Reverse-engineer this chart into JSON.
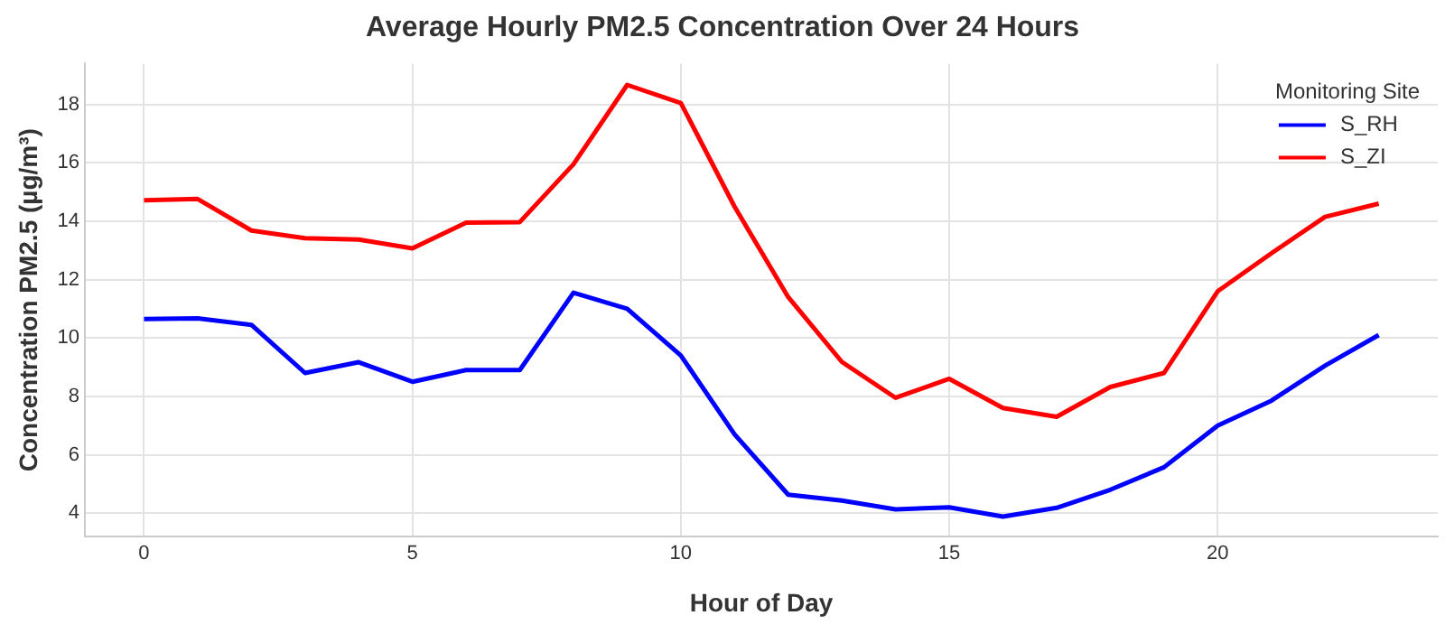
{
  "chart_data": {
    "type": "line",
    "title": "Average Hourly PM2.5 Concentration Over 24 Hours",
    "xlabel": "Hour of Day",
    "ylabel": "Concentration PM2.5 (µg/m³)",
    "legend_title": "Monitoring Site",
    "x": [
      0,
      1,
      2,
      3,
      4,
      5,
      6,
      7,
      8,
      9,
      10,
      11,
      12,
      13,
      14,
      15,
      16,
      17,
      18,
      19,
      20,
      21,
      22,
      23
    ],
    "series": [
      {
        "name": "S_RH",
        "color": "#0000ff",
        "values": [
          10.65,
          10.67,
          10.45,
          8.8,
          9.17,
          8.5,
          8.9,
          8.9,
          11.55,
          11.0,
          9.4,
          6.7,
          4.63,
          4.43,
          4.13,
          4.2,
          3.88,
          4.18,
          4.8,
          5.57,
          7.0,
          7.85,
          9.05,
          10.1
        ]
      },
      {
        "name": "S_ZI",
        "color": "#ff0000",
        "values": [
          14.72,
          14.76,
          13.68,
          13.42,
          13.37,
          13.07,
          13.95,
          13.97,
          15.95,
          18.67,
          18.05,
          14.5,
          11.4,
          9.18,
          7.95,
          8.6,
          7.6,
          7.3,
          8.32,
          8.8,
          11.6,
          12.9,
          14.15,
          14.6
        ]
      }
    ],
    "xlim": [
      -1.1,
      24.1
    ],
    "xticks": [
      0,
      5,
      10,
      15,
      20
    ],
    "ylim": [
      3.2,
      19.4
    ],
    "yticks": [
      4,
      6,
      8,
      10,
      12,
      14,
      16,
      18
    ],
    "grid": true,
    "legend": "top right",
    "marker": "none",
    "line_style": "solid"
  }
}
